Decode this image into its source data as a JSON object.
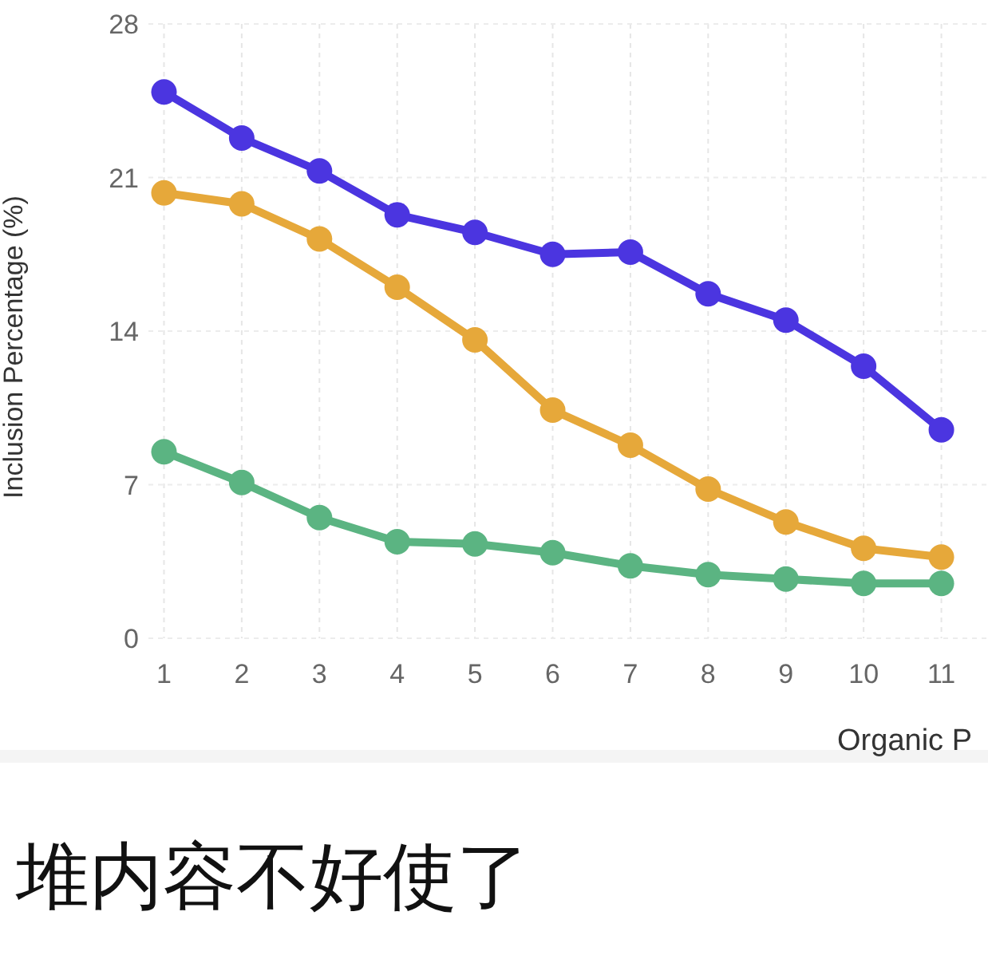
{
  "chart_data": {
    "type": "line",
    "ylabel": "Inclusion Percentage (%)",
    "xlabel": "Organic P",
    "x": [
      1,
      2,
      3,
      4,
      5,
      6,
      7,
      8,
      9,
      10,
      11
    ],
    "series": [
      {
        "color": "#4b35e0",
        "values": [
          24.9,
          22.8,
          21.3,
          19.3,
          18.5,
          17.5,
          17.6,
          15.7,
          14.5,
          12.4,
          9.5
        ]
      },
      {
        "color": "#e6a83a",
        "values": [
          20.3,
          19.8,
          18.2,
          16.0,
          13.6,
          10.4,
          8.8,
          6.8,
          5.3,
          4.1,
          3.7
        ]
      },
      {
        "color": "#5bb482",
        "values": [
          8.5,
          7.1,
          5.5,
          4.4,
          4.3,
          3.9,
          3.3,
          2.9,
          2.7,
          2.5,
          2.5
        ]
      }
    ],
    "xlim": [
      0.8,
      11.6
    ],
    "ylim": [
      0,
      28
    ],
    "xticks": [
      1,
      2,
      3,
      4,
      5,
      6,
      7,
      8,
      9,
      10,
      11
    ],
    "yticks": [
      0,
      7,
      14,
      21,
      28
    ],
    "grid": true,
    "marker": "circle",
    "line_style": "solid",
    "annotations": [
      "堆内容不好使了"
    ]
  }
}
